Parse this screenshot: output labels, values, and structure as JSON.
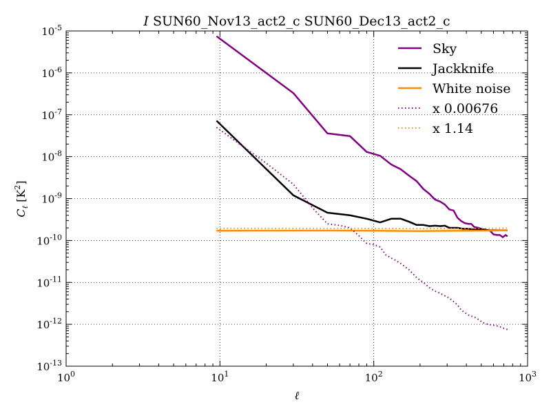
{
  "chart_data": {
    "type": "line",
    "title_prefix": "I",
    "title": "SUN60_Nov13_act2_c SUN60_Dec13_act2_c",
    "xlabel_symbol": "ℓ",
    "ylabel_symbol": "C",
    "ylabel_sub": "ℓ",
    "ylabel_unit": "[K",
    "ylabel_unit_sup": "2",
    "ylabel_unit_close": "]",
    "xscale": "log",
    "yscale": "log",
    "xlim": [
      1,
      1000
    ],
    "ylim": [
      1e-13,
      1e-05
    ],
    "grid": true,
    "legend_position": "top-right",
    "x_ticks": [
      {
        "value": 1,
        "base": "10",
        "exp": "0"
      },
      {
        "value": 10,
        "base": "10",
        "exp": "1"
      },
      {
        "value": 100,
        "base": "10",
        "exp": "2"
      },
      {
        "value": 1000,
        "base": "10",
        "exp": "3"
      }
    ],
    "y_ticks": [
      {
        "value": 1e-05,
        "base": "10",
        "exp": "-5"
      },
      {
        "value": 1e-06,
        "base": "10",
        "exp": "-6"
      },
      {
        "value": 1e-07,
        "base": "10",
        "exp": "-7"
      },
      {
        "value": 1e-08,
        "base": "10",
        "exp": "-8"
      },
      {
        "value": 1e-09,
        "base": "10",
        "exp": "-9"
      },
      {
        "value": 1e-10,
        "base": "10",
        "exp": "-10"
      },
      {
        "value": 1e-11,
        "base": "10",
        "exp": "-11"
      },
      {
        "value": 1e-12,
        "base": "10",
        "exp": "-12"
      },
      {
        "value": 1e-13,
        "base": "10",
        "exp": "-13"
      }
    ],
    "series": [
      {
        "name": "Sky",
        "color": "#800080",
        "dash": "solid",
        "points": [
          [
            9.5,
            7.5e-06
          ],
          [
            30,
            3.3e-07
          ],
          [
            50,
            3.6e-08
          ],
          [
            70,
            3.1e-08
          ],
          [
            90,
            1.3e-08
          ],
          [
            110,
            1.05e-08
          ],
          [
            130,
            6.5e-09
          ],
          [
            150,
            5e-09
          ],
          [
            170,
            3.5e-09
          ],
          [
            190,
            2.6e-09
          ],
          [
            210,
            1.7e-09
          ],
          [
            230,
            1.3e-09
          ],
          [
            250,
            9.5e-10
          ],
          [
            270,
            8.5e-10
          ],
          [
            290,
            7.2e-10
          ],
          [
            310,
            5.5e-10
          ],
          [
            330,
            5.2e-10
          ],
          [
            350,
            3.5e-10
          ],
          [
            370,
            2.9e-10
          ],
          [
            390,
            2.6e-10
          ],
          [
            410,
            2.5e-10
          ],
          [
            430,
            2.5e-10
          ],
          [
            450,
            2.1e-10
          ],
          [
            480,
            2e-10
          ],
          [
            510,
            1.85e-10
          ],
          [
            540,
            1.8e-10
          ],
          [
            570,
            1.7e-10
          ],
          [
            600,
            1.4e-10
          ],
          [
            630,
            1.35e-10
          ],
          [
            660,
            1.35e-10
          ],
          [
            690,
            1.2e-10
          ],
          [
            720,
            1.35e-10
          ],
          [
            740,
            1.25e-10
          ]
        ]
      },
      {
        "name": "Jackknife",
        "color": "#000000",
        "dash": "solid",
        "points": [
          [
            9.5,
            7.2e-08
          ],
          [
            30,
            1.2e-09
          ],
          [
            50,
            4.6e-10
          ],
          [
            70,
            4e-10
          ],
          [
            90,
            3.3e-10
          ],
          [
            110,
            2.7e-10
          ],
          [
            130,
            3.3e-10
          ],
          [
            150,
            3.3e-10
          ],
          [
            170,
            2.8e-10
          ],
          [
            190,
            2.35e-10
          ],
          [
            210,
            2.35e-10
          ],
          [
            230,
            2.2e-10
          ],
          [
            250,
            2.25e-10
          ],
          [
            270,
            2.2e-10
          ],
          [
            290,
            2.25e-10
          ],
          [
            310,
            2e-10
          ],
          [
            330,
            2e-10
          ],
          [
            350,
            2e-10
          ],
          [
            380,
            1.9e-10
          ],
          [
            410,
            1.9e-10
          ],
          [
            440,
            1.85e-10
          ],
          [
            480,
            1.85e-10
          ],
          [
            520,
            1.8e-10
          ],
          [
            560,
            1.75e-10
          ],
          [
            600,
            1.75e-10
          ],
          [
            650,
            1.75e-10
          ],
          [
            700,
            1.75e-10
          ],
          [
            740,
            1.75e-10
          ]
        ]
      },
      {
        "name": "White noise",
        "color": "#ff8c00",
        "dash": "solid",
        "points": [
          [
            9.5,
            1.7e-10
          ],
          [
            50,
            1.72e-10
          ],
          [
            100,
            1.7e-10
          ],
          [
            200,
            1.68e-10
          ],
          [
            400,
            1.7e-10
          ],
          [
            600,
            1.72e-10
          ],
          [
            740,
            1.75e-10
          ]
        ]
      },
      {
        "name": "x 0.00676",
        "color": "#800080",
        "dash": "dotted",
        "points": [
          [
            9.5,
            5e-08
          ],
          [
            20,
            7e-09
          ],
          [
            30,
            2.2e-09
          ],
          [
            40,
            6e-10
          ],
          [
            50,
            2.5e-10
          ],
          [
            60,
            2.3e-10
          ],
          [
            70,
            2e-10
          ],
          [
            80,
            1.3e-10
          ],
          [
            90,
            8.5e-11
          ],
          [
            100,
            8e-11
          ],
          [
            110,
            7e-11
          ],
          [
            120,
            4.5e-11
          ],
          [
            130,
            3.8e-11
          ],
          [
            140,
            3.3e-11
          ],
          [
            150,
            2.8e-11
          ],
          [
            170,
            2e-11
          ],
          [
            190,
            1.3e-11
          ],
          [
            210,
            1e-11
          ],
          [
            230,
            7.5e-12
          ],
          [
            250,
            6.2e-12
          ],
          [
            270,
            5.5e-12
          ],
          [
            290,
            4.8e-12
          ],
          [
            310,
            4.2e-12
          ],
          [
            330,
            3.5e-12
          ],
          [
            350,
            2.9e-12
          ],
          [
            370,
            2.2e-12
          ],
          [
            390,
            1.9e-12
          ],
          [
            420,
            1.6e-12
          ],
          [
            450,
            1.5e-12
          ],
          [
            480,
            1.3e-12
          ],
          [
            510,
            1.1e-12
          ],
          [
            550,
            1e-12
          ],
          [
            600,
            9.5e-13
          ],
          [
            650,
            9e-13
          ],
          [
            700,
            8e-13
          ],
          [
            740,
            7.5e-13
          ]
        ]
      },
      {
        "name": "x 1.14",
        "color": "#ff8c00",
        "dash": "dotted",
        "points": [
          [
            9.5,
            1.95e-10
          ],
          [
            50,
            1.95e-10
          ],
          [
            100,
            1.93e-10
          ],
          [
            200,
            1.92e-10
          ],
          [
            400,
            1.94e-10
          ],
          [
            600,
            1.95e-10
          ],
          [
            740,
            1.97e-10
          ]
        ]
      }
    ]
  }
}
